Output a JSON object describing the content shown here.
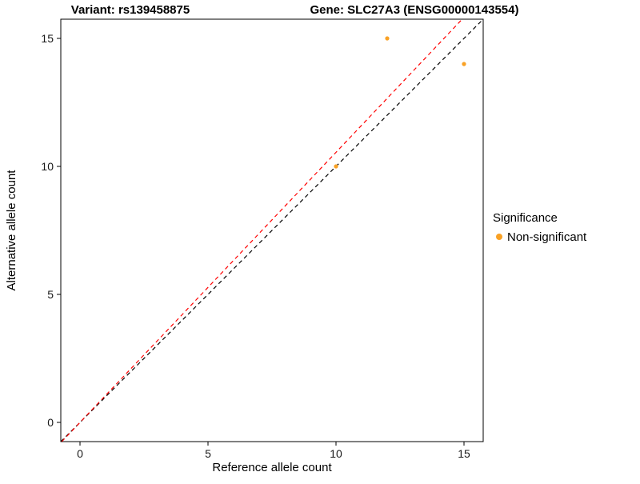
{
  "chart_data": {
    "type": "scatter",
    "title_left": "Variant: rs139458875",
    "title_right": "Gene: SLC27A3 (ENSG00000143554)",
    "xlabel": "Reference allele count",
    "ylabel": "Alternative allele count",
    "xlim": [
      -0.75,
      15.75
    ],
    "ylim": [
      -0.75,
      15.75
    ],
    "xticks": [
      0,
      5,
      10,
      15
    ],
    "yticks": [
      0,
      5,
      10,
      15
    ],
    "grid": false,
    "point_color": "#F9A125",
    "points": [
      {
        "x": 10,
        "y": 10,
        "significance": "Non-significant"
      },
      {
        "x": 12,
        "y": 15,
        "significance": "Non-significant"
      },
      {
        "x": 15,
        "y": 14,
        "significance": "Non-significant"
      }
    ],
    "lines": [
      {
        "name": "identity-line",
        "color": "#000000",
        "style": "dashed",
        "slope": 1.0,
        "intercept": 0
      },
      {
        "name": "fit-line",
        "color": "#FF0000",
        "style": "dashed",
        "slope": 1.055,
        "intercept": 0
      }
    ],
    "legend": {
      "title": "Significance",
      "items": [
        {
          "label": "Non-significant",
          "color": "#F9A125"
        }
      ]
    }
  }
}
